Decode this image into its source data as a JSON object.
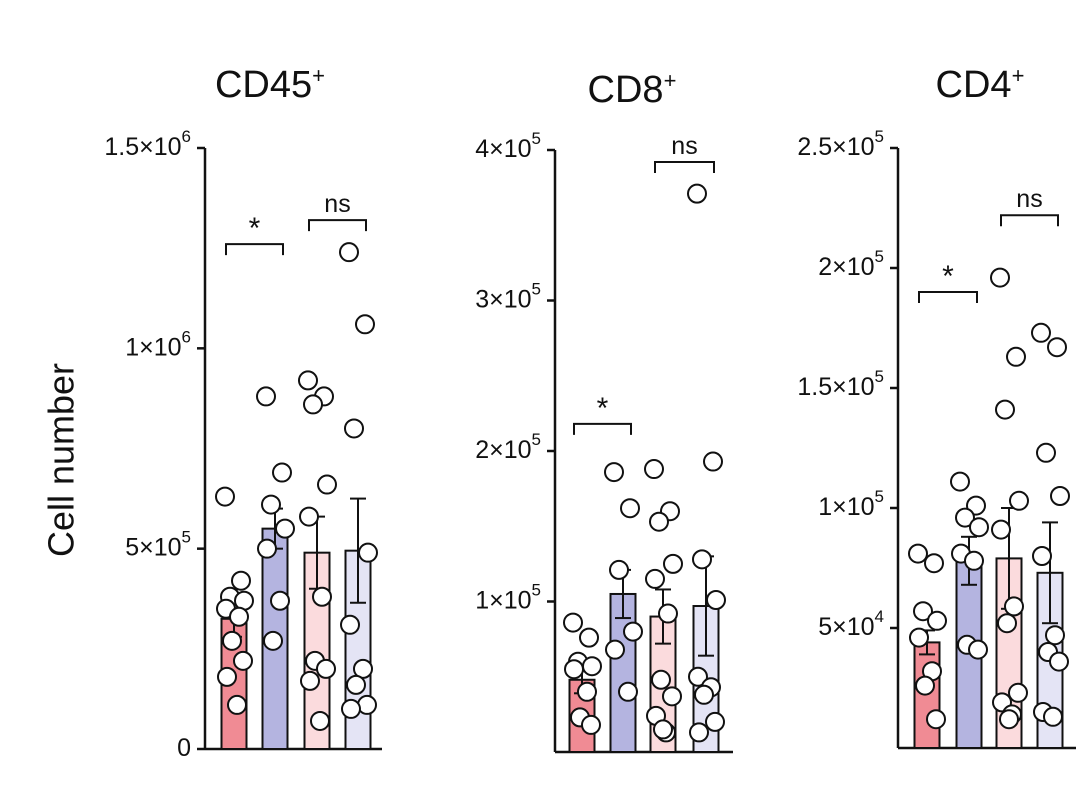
{
  "y_axis_label": "Cell number",
  "group_colors": [
    "#f08b94",
    "#b4b4e0",
    "#fbdbdd",
    "#e4e4f5"
  ],
  "chart_data": [
    {
      "type": "bar",
      "title": "CD45",
      "title_superscript": "+",
      "ylabel": "Cell number",
      "ylim": [
        0,
        1500000
      ],
      "yticks": [
        {
          "value": 0,
          "mantissa": "0",
          "exponent": ""
        },
        {
          "value": 500000,
          "mantissa": "5×10",
          "exponent": "5"
        },
        {
          "value": 1000000,
          "mantissa": "1×10",
          "exponent": "6"
        },
        {
          "value": 1500000,
          "mantissa": "1.5×10",
          "exponent": "6"
        }
      ],
      "bars": [
        {
          "mean": 325000,
          "sem": 45000,
          "points": [
            630000,
            420000,
            380000,
            370000,
            350000,
            330000,
            270000,
            220000,
            180000,
            110000
          ]
        },
        {
          "mean": 550000,
          "sem": 50000,
          "points": [
            880000,
            690000,
            610000,
            550000,
            500000,
            370000,
            270000
          ]
        },
        {
          "mean": 490000,
          "sem": 90000,
          "points": [
            920000,
            880000,
            860000,
            660000,
            580000,
            380000,
            220000,
            200000,
            170000,
            70000
          ]
        },
        {
          "mean": 495000,
          "sem": 130000,
          "points": [
            1240000,
            1060000,
            800000,
            490000,
            310000,
            200000,
            160000,
            110000,
            100000
          ]
        }
      ],
      "comparisons": [
        {
          "from": 0,
          "to": 1,
          "label": "*",
          "y": 1260000
        },
        {
          "from": 2,
          "to": 3,
          "label": "ns",
          "y": 1320000
        }
      ]
    },
    {
      "type": "bar",
      "title": "CD8",
      "title_superscript": "+",
      "ylim": [
        0,
        400000
      ],
      "yticks": [
        {
          "value": 100000,
          "mantissa": "1×10",
          "exponent": "5"
        },
        {
          "value": 200000,
          "mantissa": "2×10",
          "exponent": "5"
        },
        {
          "value": 300000,
          "mantissa": "3×10",
          "exponent": "5"
        },
        {
          "value": 400000,
          "mantissa": "4×10",
          "exponent": "5"
        }
      ],
      "bars": [
        {
          "mean": 48000,
          "sem": 9000,
          "points": [
            86000,
            76000,
            60000,
            57000,
            55000,
            40000,
            23000,
            18000
          ]
        },
        {
          "mean": 105000,
          "sem": 16000,
          "points": [
            186000,
            162000,
            121000,
            80000,
            68000,
            40000
          ]
        },
        {
          "mean": 90000,
          "sem": 18000,
          "points": [
            188000,
            160000,
            153000,
            125000,
            115000,
            92000,
            48000,
            37000,
            24000,
            13000,
            15000
          ]
        },
        {
          "mean": 97000,
          "sem": 33000,
          "points": [
            371000,
            193000,
            128000,
            101000,
            50000,
            43000,
            38000,
            20000,
            13000
          ]
        }
      ],
      "comparisons": [
        {
          "from": 0,
          "to": 1,
          "label": "*",
          "y": 218000
        },
        {
          "from": 2,
          "to": 3,
          "label": "ns",
          "y": 392000
        }
      ]
    },
    {
      "type": "bar",
      "title": "CD4",
      "title_superscript": "+",
      "ylim": [
        0,
        250000
      ],
      "yticks": [
        {
          "value": 50000,
          "mantissa": "5×10",
          "exponent": "4"
        },
        {
          "value": 100000,
          "mantissa": "1×10",
          "exponent": "5"
        },
        {
          "value": 150000,
          "mantissa": "1.5×10",
          "exponent": "5"
        },
        {
          "value": 200000,
          "mantissa": "2×10",
          "exponent": "5"
        },
        {
          "value": 250000,
          "mantissa": "2.5×10",
          "exponent": "5"
        }
      ],
      "bars": [
        {
          "mean": 44000,
          "sem": 5000,
          "points": [
            81000,
            77000,
            57000,
            53000,
            46000,
            32000,
            26000,
            12000
          ]
        },
        {
          "mean": 78000,
          "sem": 10000,
          "points": [
            111000,
            101000,
            96000,
            92000,
            81000,
            78000,
            43000,
            41000
          ]
        },
        {
          "mean": 79000,
          "sem": 21000,
          "points": [
            196000,
            163000,
            141000,
            103000,
            91000,
            59000,
            52000,
            23000,
            19000,
            14000,
            12000
          ]
        },
        {
          "mean": 73000,
          "sem": 21000,
          "points": [
            173000,
            167000,
            123000,
            105000,
            80000,
            47000,
            40000,
            36000,
            15000,
            13000
          ]
        }
      ],
      "comparisons": [
        {
          "from": 0,
          "to": 1,
          "label": "*",
          "y": 190000
        },
        {
          "from": 2,
          "to": 3,
          "label": "ns",
          "y": 222000
        }
      ]
    }
  ]
}
